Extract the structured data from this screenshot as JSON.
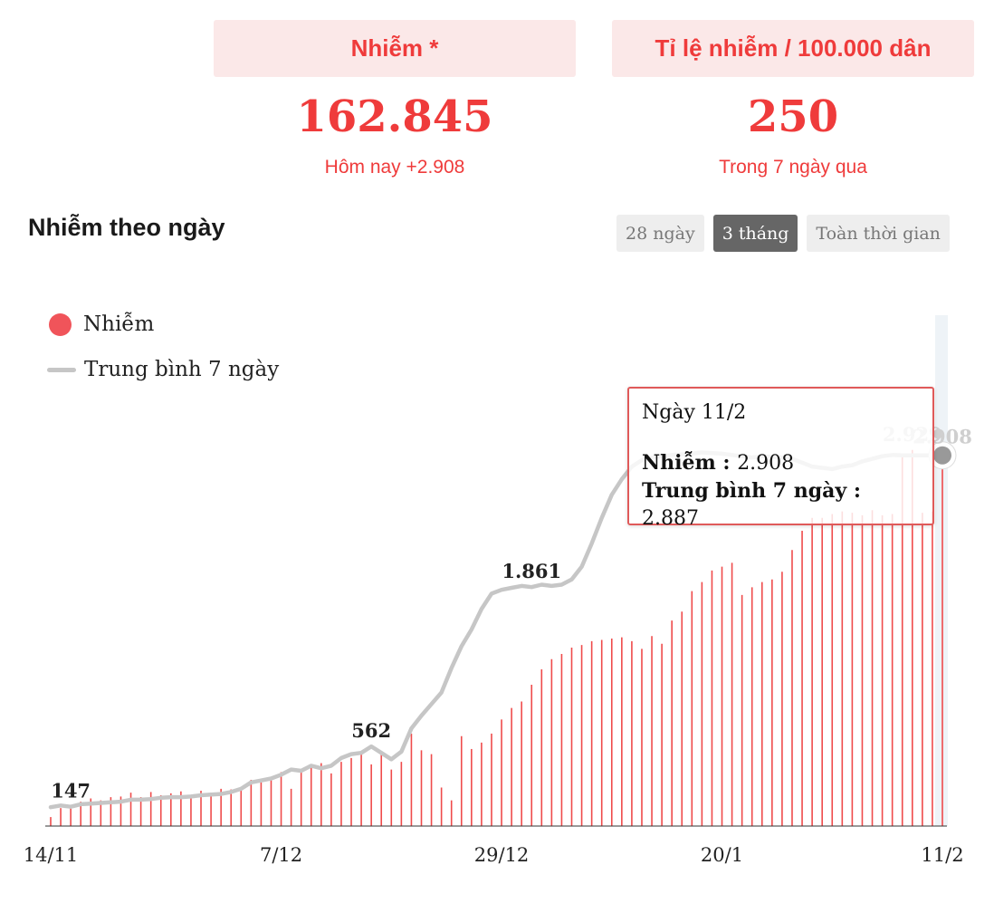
{
  "stats": {
    "infected": {
      "label": "Nhiễm *",
      "value": "162.845",
      "sub": "Hôm nay +2.908"
    },
    "rate": {
      "label": "Tỉ lệ nhiễm / 100.000 dân",
      "value": "250",
      "sub": "Trong 7 ngày qua"
    }
  },
  "section_title": "Nhiễm theo ngày",
  "tabs": [
    {
      "label": "28 ngày",
      "active": false
    },
    {
      "label": "3 tháng",
      "active": true
    },
    {
      "label": "Toàn thời gian",
      "active": false
    }
  ],
  "legend": {
    "cases": "Nhiễm",
    "avg": "Trung bình 7 ngày"
  },
  "tooltip": {
    "date": "Ngày 11/2",
    "cases_label": "Nhiễm : ",
    "cases_value": "2.908",
    "avg_label": "Trung bình 7 ngày : ",
    "avg_value": "2.887"
  },
  "colors": {
    "accent": "#ef3b3b",
    "bar": "#ef4b4b",
    "avg_line": "#c6c6c6",
    "header_bg": "#fbe8e8"
  },
  "chart_data": {
    "type": "bar",
    "x_tick_labels": [
      "14/11",
      "7/12",
      "29/12",
      "20/1",
      "11/2"
    ],
    "x_tick_index": [
      0,
      23,
      45,
      67,
      89
    ],
    "ylim": [
      0,
      3400
    ],
    "series": [
      {
        "name": "Nhiễm",
        "values": [
          70,
          140,
          147,
          190,
          215,
          200,
          225,
          230,
          260,
          225,
          265,
          240,
          255,
          270,
          240,
          275,
          260,
          290,
          285,
          300,
          360,
          340,
          370,
          420,
          290,
          420,
          460,
          490,
          410,
          500,
          530,
          560,
          480,
          570,
          440,
          500,
          720,
          590,
          560,
          300,
          200,
          700,
          600,
          650,
          720,
          830,
          920,
          970,
          1100,
          1220,
          1300,
          1340,
          1390,
          1410,
          1440,
          1450,
          1460,
          1470,
          1440,
          1380,
          1480,
          1420,
          1600,
          1670,
          1830,
          1900,
          1990,
          2020,
          2050,
          1800,
          1860,
          1900,
          1920,
          1980,
          2150,
          2300,
          2400,
          2400,
          2430,
          2450,
          2440,
          2420,
          2460,
          2420,
          2430,
          2900,
          2929,
          2440,
          2450,
          2908
        ]
      },
      {
        "name": "Trung bình 7 ngày",
        "values": [
          147,
          160,
          150,
          170,
          175,
          180,
          185,
          190,
          205,
          205,
          210,
          220,
          225,
          225,
          230,
          240,
          245,
          250,
          265,
          290,
          340,
          355,
          370,
          400,
          440,
          430,
          470,
          450,
          470,
          530,
          560,
          570,
          620,
          570,
          520,
          580,
          760,
          860,
          950,
          1040,
          1230,
          1400,
          1530,
          1690,
          1810,
          1840,
          1855,
          1870,
          1861,
          1880,
          1870,
          1880,
          1920,
          2020,
          2200,
          2400,
          2580,
          2700,
          2800,
          2850,
          2870,
          2880,
          2890,
          2895,
          2900,
          2910,
          2905,
          2900,
          2890,
          2880,
          2870,
          2880,
          2875,
          2870,
          2860,
          2830,
          2800,
          2790,
          2780,
          2800,
          2810,
          2840,
          2860,
          2880,
          2890,
          2887,
          2887,
          2887,
          2887,
          2887
        ]
      }
    ],
    "annotations": [
      "147",
      "562",
      "1.861",
      "2.929",
      "2.908"
    ]
  }
}
